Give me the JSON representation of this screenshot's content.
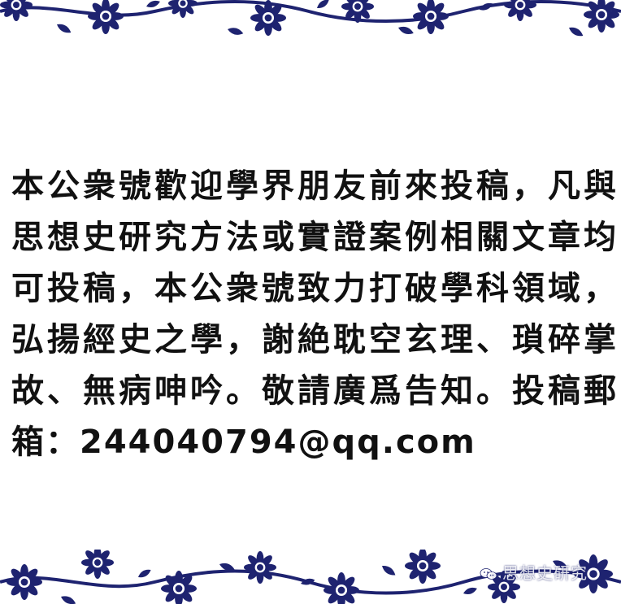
{
  "notice": {
    "text": "本公衆號歡迎學界朋友前來投稿，凡與思想史研究方法或實證案例相關文章均可投稿，本公衆號致力打破學科領域，弘揚經史之學，謝絶耽空玄理、瑣碎掌故、無病呻吟。敬請廣爲告知。投稿郵箱：244040794@qq.com"
  },
  "watermark": {
    "icon": "wechat-icon",
    "text": "思想史研究"
  },
  "colors": {
    "porcelain_blue": "#1e2370",
    "background": "#ffffff",
    "text": "#111111"
  }
}
